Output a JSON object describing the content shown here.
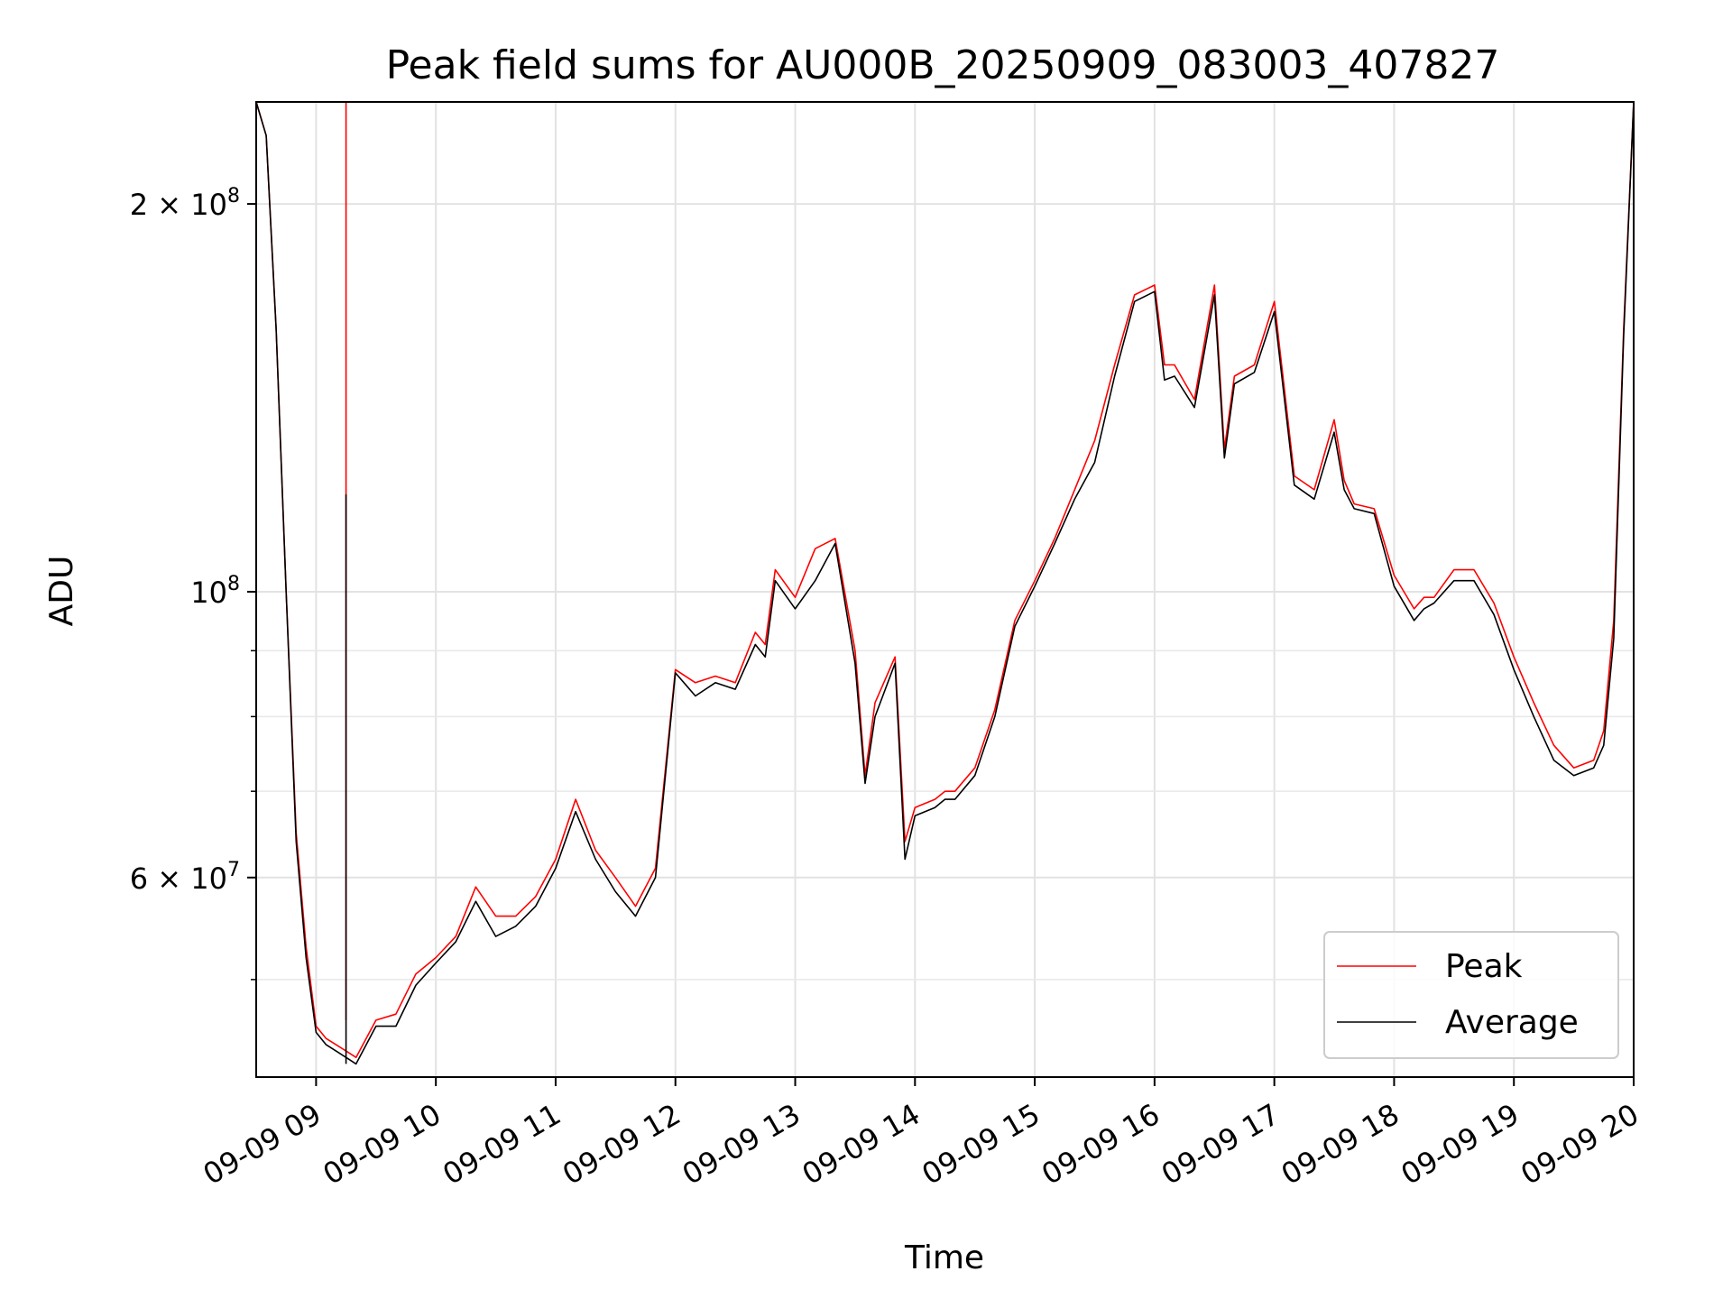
{
  "chart_data": {
    "type": "line",
    "title": "Peak field sums for AU000B_20250909_083003_407827",
    "xlabel": "Time",
    "ylabel": "ADU",
    "y_scale": "log",
    "ylim": [
      42000000,
      240000000
    ],
    "xlim": [
      "09-09 08:30",
      "09-09 20:00"
    ],
    "grid": true,
    "legend_position": "bottom-right",
    "x_ticks": [
      "09-09 09",
      "09-09 10",
      "09-09 11",
      "09-09 12",
      "09-09 13",
      "09-09 14",
      "09-09 15",
      "09-09 16",
      "09-09 17",
      "09-09 18",
      "09-09 19",
      "09-09 20"
    ],
    "y_major_ticks": [
      {
        "value": 200000000,
        "mantissa": "2 × 10",
        "exp": "8"
      },
      {
        "value": 100000000,
        "mantissa": "10",
        "exp": "8"
      },
      {
        "value": 60000000,
        "mantissa": "6 × 10",
        "exp": "7"
      }
    ],
    "y_minor_ticks": [
      50000000,
      70000000,
      80000000,
      90000000
    ],
    "series": [
      {
        "name": "Peak",
        "color": "#ff0000",
        "x": [
          "09-09 08:30",
          "09-09 08:35",
          "09-09 08:40",
          "09-09 08:45",
          "09-09 08:50",
          "09-09 08:55",
          "09-09 09:00",
          "09-09 09:05",
          "09-09 09:10",
          "09-09 09:15",
          "09-09 09:20",
          "09-09 09:30",
          "09-09 09:40",
          "09-09 09:50",
          "09-09 10:00",
          "09-09 10:10",
          "09-09 10:20",
          "09-09 10:30",
          "09-09 10:40",
          "09-09 10:50",
          "09-09 11:00",
          "09-09 11:10",
          "09-09 11:20",
          "09-09 11:30",
          "09-09 11:40",
          "09-09 11:50",
          "09-09 12:00",
          "09-09 12:10",
          "09-09 12:20",
          "09-09 12:30",
          "09-09 12:40",
          "09-09 12:45",
          "09-09 12:50",
          "09-09 13:00",
          "09-09 13:10",
          "09-09 13:20",
          "09-09 13:30",
          "09-09 13:35",
          "09-09 13:40",
          "09-09 13:50",
          "09-09 13:55",
          "09-09 14:00",
          "09-09 14:10",
          "09-09 14:15",
          "09-09 14:20",
          "09-09 14:30",
          "09-09 14:40",
          "09-09 14:50",
          "09-09 15:00",
          "09-09 15:10",
          "09-09 15:20",
          "09-09 15:30",
          "09-09 15:40",
          "09-09 15:50",
          "09-09 16:00",
          "09-09 16:05",
          "09-09 16:10",
          "09-09 16:20",
          "09-09 16:30",
          "09-09 16:35",
          "09-09 16:40",
          "09-09 16:50",
          "09-09 17:00",
          "09-09 17:10",
          "09-09 17:20",
          "09-09 17:30",
          "09-09 17:35",
          "09-09 17:40",
          "09-09 17:50",
          "09-09 18:00",
          "09-09 18:10",
          "09-09 18:15",
          "09-09 18:20",
          "09-09 18:30",
          "09-09 18:40",
          "09-09 18:50",
          "09-09 19:00",
          "09-09 19:10",
          "09-09 19:20",
          "09-09 19:30",
          "09-09 19:40",
          "09-09 19:45",
          "09-09 19:50",
          "09-09 19:55",
          "09-09 20:00"
        ],
        "values": [
          240000000,
          226000000,
          160000000,
          100000000,
          65000000,
          53000000,
          46000000,
          45000000,
          44500000,
          44000000,
          43500000,
          46500000,
          47000000,
          50500000,
          52000000,
          54000000,
          59000000,
          56000000,
          56000000,
          58000000,
          62000000,
          69000000,
          63000000,
          60000000,
          57000000,
          61000000,
          87000000,
          85000000,
          86000000,
          85000000,
          93000000,
          91000000,
          104000000,
          99000000,
          108000000,
          110000000,
          90000000,
          72000000,
          82000000,
          89000000,
          64000000,
          68000000,
          69000000,
          70000000,
          70000000,
          73000000,
          81000000,
          95000000,
          102000000,
          110000000,
          120000000,
          131000000,
          150000000,
          170000000,
          173000000,
          150000000,
          150000000,
          141000000,
          173000000,
          129000000,
          147000000,
          150000000,
          168000000,
          123000000,
          120000000,
          136000000,
          122000000,
          117000000,
          116000000,
          103000000,
          97000000,
          99000000,
          99000000,
          104000000,
          104000000,
          98000000,
          89000000,
          82000000,
          76000000,
          73000000,
          74000000,
          78000000,
          95000000,
          160000000,
          240000000
        ]
      },
      {
        "name": "Average",
        "color": "#000000",
        "x": [
          "09-09 08:30",
          "09-09 08:35",
          "09-09 08:40",
          "09-09 08:45",
          "09-09 08:50",
          "09-09 08:55",
          "09-09 09:00",
          "09-09 09:05",
          "09-09 09:10",
          "09-09 09:15",
          "09-09 09:20",
          "09-09 09:30",
          "09-09 09:40",
          "09-09 09:50",
          "09-09 10:00",
          "09-09 10:10",
          "09-09 10:20",
          "09-09 10:30",
          "09-09 10:40",
          "09-09 10:50",
          "09-09 11:00",
          "09-09 11:10",
          "09-09 11:20",
          "09-09 11:30",
          "09-09 11:40",
          "09-09 11:50",
          "09-09 12:00",
          "09-09 12:10",
          "09-09 12:20",
          "09-09 12:30",
          "09-09 12:40",
          "09-09 12:45",
          "09-09 12:50",
          "09-09 13:00",
          "09-09 13:10",
          "09-09 13:20",
          "09-09 13:30",
          "09-09 13:35",
          "09-09 13:40",
          "09-09 13:50",
          "09-09 13:55",
          "09-09 14:00",
          "09-09 14:10",
          "09-09 14:15",
          "09-09 14:20",
          "09-09 14:30",
          "09-09 14:40",
          "09-09 14:50",
          "09-09 15:00",
          "09-09 15:10",
          "09-09 15:20",
          "09-09 15:30",
          "09-09 15:40",
          "09-09 15:50",
          "09-09 16:00",
          "09-09 16:05",
          "09-09 16:10",
          "09-09 16:20",
          "09-09 16:30",
          "09-09 16:35",
          "09-09 16:40",
          "09-09 16:50",
          "09-09 17:00",
          "09-09 17:10",
          "09-09 17:20",
          "09-09 17:30",
          "09-09 17:35",
          "09-09 17:40",
          "09-09 17:50",
          "09-09 18:00",
          "09-09 18:10",
          "09-09 18:15",
          "09-09 18:20",
          "09-09 18:30",
          "09-09 18:40",
          "09-09 18:50",
          "09-09 19:00",
          "09-09 19:10",
          "09-09 19:20",
          "09-09 19:30",
          "09-09 19:40",
          "09-09 19:45",
          "09-09 19:50",
          "09-09 19:55",
          "09-09 20:00"
        ],
        "values": [
          240000000,
          226000000,
          160000000,
          100000000,
          64000000,
          52000000,
          45500000,
          44500000,
          44000000,
          43500000,
          43000000,
          46000000,
          46000000,
          49500000,
          51500000,
          53500000,
          57500000,
          54000000,
          55000000,
          57000000,
          61000000,
          67500000,
          62000000,
          58500000,
          56000000,
          60000000,
          86500000,
          83000000,
          85000000,
          84000000,
          91000000,
          89000000,
          102000000,
          97000000,
          102000000,
          109000000,
          88000000,
          71000000,
          80000000,
          88000000,
          62000000,
          67000000,
          68000000,
          69000000,
          69000000,
          72000000,
          80000000,
          94000000,
          101000000,
          109000000,
          118000000,
          126000000,
          147000000,
          168000000,
          171000000,
          146000000,
          147000000,
          139000000,
          170000000,
          127000000,
          145000000,
          148000000,
          165000000,
          121000000,
          118000000,
          133000000,
          120000000,
          116000000,
          115000000,
          101000000,
          95000000,
          97000000,
          98000000,
          102000000,
          102000000,
          96000000,
          87000000,
          80000000,
          74000000,
          72000000,
          73000000,
          76000000,
          92000000,
          158000000,
          240000000
        ]
      }
    ],
    "spikes": [
      {
        "x": "09-09 09:15",
        "peak": 240000000,
        "average": 119000000
      }
    ]
  }
}
